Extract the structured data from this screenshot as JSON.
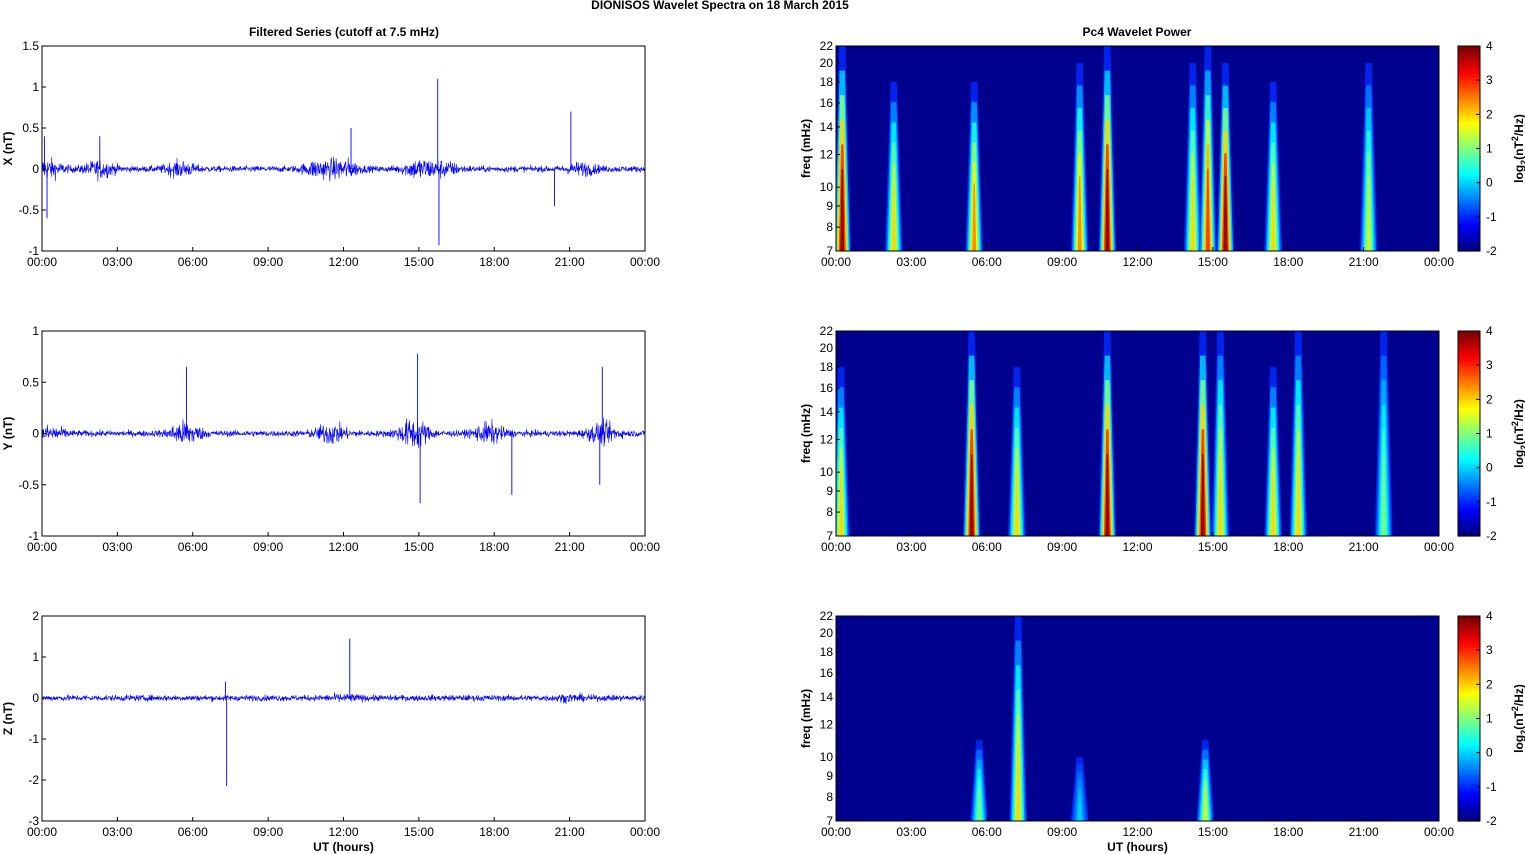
{
  "figure": {
    "title": "DIONISOS Wavelet Spectra on 18 March     2015",
    "left_title": "Filtered Series (cutoff at 7.5 mHz)",
    "right_title": "Pc4 Wavelet Power",
    "x_label": "UT (hours)",
    "colorbar_label": "log2(nT^2/Hz)",
    "line_color": "#0000ff"
  },
  "chart_data": [
    {
      "type": "line",
      "component": "X",
      "ylabel": "X (nT)",
      "xlabel": "",
      "x_ticks": [
        "00:00",
        "03:00",
        "06:00",
        "09:00",
        "12:00",
        "15:00",
        "18:00",
        "21:00",
        "00:00"
      ],
      "xlim": [
        0,
        24
      ],
      "ylim": [
        -1,
        1.5
      ],
      "y_ticks": [
        "1.5",
        "1",
        "0.5",
        "0",
        "-0.5",
        "-1"
      ],
      "y_tick_values": [
        1.5,
        1,
        0.5,
        0,
        -0.5,
        -1
      ],
      "noise_envelope": [
        {
          "t": 0.2,
          "amp": 0.35
        },
        {
          "t": 2.3,
          "amp": 0.3
        },
        {
          "t": 5.5,
          "amp": 0.25
        },
        {
          "t": 11.0,
          "amp": 0.3
        },
        {
          "t": 12.0,
          "amp": 0.35
        },
        {
          "t": 15.0,
          "amp": 0.35
        },
        {
          "t": 16.0,
          "amp": 0.25
        },
        {
          "t": 21.5,
          "amp": 0.2
        }
      ],
      "spikes": [
        {
          "t": 0.1,
          "y": 0.4
        },
        {
          "t": 0.2,
          "y": -0.6
        },
        {
          "t": 2.3,
          "y": 0.4
        },
        {
          "t": 12.3,
          "y": 0.5
        },
        {
          "t": 15.75,
          "y": 1.1
        },
        {
          "t": 15.8,
          "y": -0.93
        },
        {
          "t": 21.05,
          "y": 0.7
        },
        {
          "t": 20.4,
          "y": -0.45
        }
      ]
    },
    {
      "type": "line",
      "component": "Y",
      "ylabel": "Y (nT)",
      "xlabel": "",
      "x_ticks": [
        "00:00",
        "03:00",
        "06:00",
        "09:00",
        "12:00",
        "15:00",
        "18:00",
        "21:00",
        "00:00"
      ],
      "xlim": [
        0,
        24
      ],
      "ylim": [
        -1,
        1
      ],
      "y_ticks": [
        "1",
        "0.5",
        "0",
        "-0.5",
        "-1"
      ],
      "y_tick_values": [
        1,
        0.5,
        0,
        -0.5,
        -1
      ],
      "noise_envelope": [
        {
          "t": 0.3,
          "amp": 0.2
        },
        {
          "t": 5.7,
          "amp": 0.35
        },
        {
          "t": 11.5,
          "amp": 0.3
        },
        {
          "t": 14.8,
          "amp": 0.45
        },
        {
          "t": 17.8,
          "amp": 0.3
        },
        {
          "t": 22.3,
          "amp": 0.3
        }
      ],
      "spikes": [
        {
          "t": 5.75,
          "y": 0.65
        },
        {
          "t": 14.95,
          "y": 0.78
        },
        {
          "t": 15.05,
          "y": -0.68
        },
        {
          "t": 22.3,
          "y": 0.65
        },
        {
          "t": 18.7,
          "y": -0.6
        },
        {
          "t": 22.2,
          "y": -0.5
        }
      ]
    },
    {
      "type": "line",
      "component": "Z",
      "ylabel": "Z (nT)",
      "xlabel": "UT (hours)",
      "x_ticks": [
        "00:00",
        "03:00",
        "06:00",
        "09:00",
        "12:00",
        "15:00",
        "18:00",
        "21:00",
        "00:00"
      ],
      "xlim": [
        0,
        24
      ],
      "ylim": [
        -3,
        2
      ],
      "y_ticks": [
        "2",
        "1",
        "0",
        "-1",
        "-2",
        "-3"
      ],
      "y_tick_values": [
        2,
        1,
        0,
        -1,
        -2,
        -3
      ],
      "noise_envelope": [
        {
          "t": 12.0,
          "amp": 0.15
        },
        {
          "t": 21.0,
          "amp": 0.15
        }
      ],
      "spikes": [
        {
          "t": 7.3,
          "y": 0.4
        },
        {
          "t": 7.35,
          "y": -2.15
        },
        {
          "t": 12.25,
          "y": 1.45
        }
      ]
    },
    {
      "type": "heatmap",
      "component": "X",
      "ylabel": "freq (mHz)",
      "xlabel": "",
      "x_ticks": [
        "00:00",
        "03:00",
        "06:00",
        "09:00",
        "12:00",
        "15:00",
        "18:00",
        "21:00",
        "00:00"
      ],
      "xlim": [
        0,
        24
      ],
      "ylim": [
        7,
        22
      ],
      "y_ticks": [
        "22",
        "20",
        "18",
        "16",
        "14",
        "12",
        "10",
        "9",
        "8",
        "7"
      ],
      "y_tick_values": [
        22,
        20,
        18,
        16,
        14,
        12,
        10,
        9,
        8,
        7
      ],
      "colorbar_ticks": [
        "4",
        "3",
        "2",
        "1",
        "0",
        "-1",
        "-2"
      ],
      "colorbar_values": [
        4,
        3,
        2,
        1,
        0,
        -1,
        -2
      ],
      "clim": [
        -2,
        4
      ],
      "streaks": [
        {
          "t": 0.25,
          "power": 4.0,
          "top": 22
        },
        {
          "t": 2.3,
          "power": 2.0,
          "top": 18
        },
        {
          "t": 5.5,
          "power": 2.5,
          "top": 18
        },
        {
          "t": 9.7,
          "power": 2.5,
          "top": 20
        },
        {
          "t": 10.8,
          "power": 4.0,
          "top": 22
        },
        {
          "t": 14.2,
          "power": 2.0,
          "top": 20
        },
        {
          "t": 14.8,
          "power": 3.0,
          "top": 22
        },
        {
          "t": 15.5,
          "power": 4.0,
          "top": 20
        },
        {
          "t": 17.4,
          "power": 2.0,
          "top": 18
        },
        {
          "t": 21.2,
          "power": 1.5,
          "top": 20
        }
      ]
    },
    {
      "type": "heatmap",
      "component": "Y",
      "ylabel": "freq (mHz)",
      "xlabel": "",
      "x_ticks": [
        "00:00",
        "03:00",
        "06:00",
        "09:00",
        "12:00",
        "15:00",
        "18:00",
        "21:00",
        "00:00"
      ],
      "xlim": [
        0,
        24
      ],
      "ylim": [
        7,
        22
      ],
      "y_ticks": [
        "22",
        "20",
        "18",
        "16",
        "14",
        "12",
        "10",
        "9",
        "8",
        "7"
      ],
      "y_tick_values": [
        22,
        20,
        18,
        16,
        14,
        12,
        10,
        9,
        8,
        7
      ],
      "colorbar_ticks": [
        "4",
        "3",
        "2",
        "1",
        "0",
        "-1",
        "-2"
      ],
      "colorbar_values": [
        4,
        3,
        2,
        1,
        0,
        -1,
        -2
      ],
      "clim": [
        -2,
        4
      ],
      "streaks": [
        {
          "t": 0.2,
          "power": 2.0,
          "top": 18
        },
        {
          "t": 5.4,
          "power": 4.0,
          "top": 22
        },
        {
          "t": 7.2,
          "power": 2.0,
          "top": 18
        },
        {
          "t": 10.8,
          "power": 4.0,
          "top": 22
        },
        {
          "t": 14.6,
          "power": 4.0,
          "top": 22
        },
        {
          "t": 15.3,
          "power": 2.0,
          "top": 22
        },
        {
          "t": 17.4,
          "power": 2.0,
          "top": 18
        },
        {
          "t": 18.4,
          "power": 2.0,
          "top": 22
        },
        {
          "t": 21.8,
          "power": 1.0,
          "top": 22
        }
      ]
    },
    {
      "type": "heatmap",
      "component": "Z",
      "ylabel": "freq (mHz)",
      "xlabel": "UT (hours)",
      "x_ticks": [
        "00:00",
        "03:00",
        "06:00",
        "09:00",
        "12:00",
        "15:00",
        "18:00",
        "21:00",
        "00:00"
      ],
      "xlim": [
        0,
        24
      ],
      "ylim": [
        7,
        22
      ],
      "y_ticks": [
        "22",
        "20",
        "18",
        "16",
        "14",
        "12",
        "10",
        "9",
        "8",
        "7"
      ],
      "y_tick_values": [
        22,
        20,
        18,
        16,
        14,
        12,
        10,
        9,
        8,
        7
      ],
      "colorbar_ticks": [
        "4",
        "3",
        "2",
        "1",
        "0",
        "-1",
        "-2"
      ],
      "colorbar_values": [
        4,
        3,
        2,
        1,
        0,
        -1,
        -2
      ],
      "clim": [
        -2,
        4
      ],
      "streaks": [
        {
          "t": 5.7,
          "power": 1.0,
          "top": 11
        },
        {
          "t": 7.25,
          "power": 2.0,
          "top": 22
        },
        {
          "t": 14.7,
          "power": 1.5,
          "top": 11
        },
        {
          "t": 9.7,
          "power": 0.0,
          "top": 10
        }
      ]
    }
  ]
}
